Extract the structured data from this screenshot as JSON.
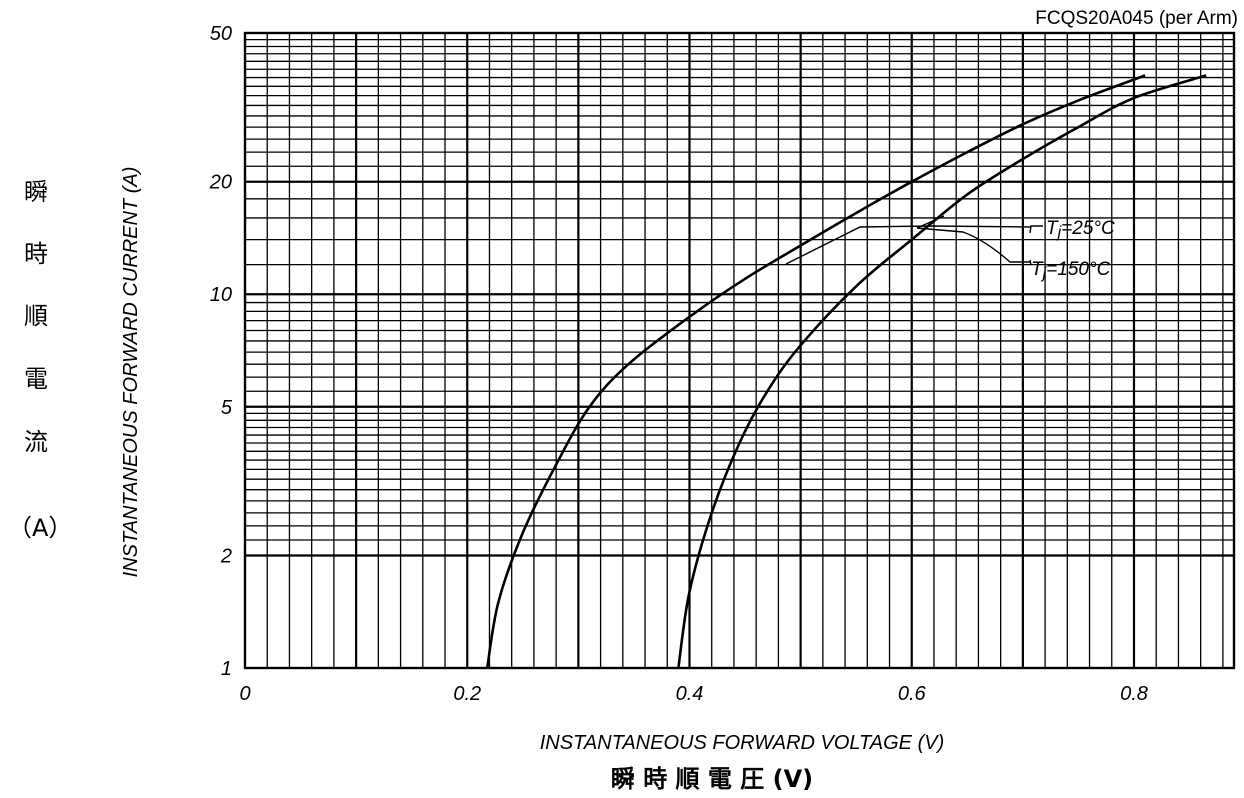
{
  "chart_data": {
    "type": "line",
    "title": "FCQS20A045 (per Arm)",
    "xlabel": "INSTANTANEOUS FORWARD VOLTAGE (V)",
    "xlabel_jp": "瞬 時 順 電 圧 (V)",
    "ylabel": "INSTANTANEOUS FORWARD CURRENT (A)",
    "ylabel_jp": [
      "瞬",
      "時",
      "順",
      "電",
      "流"
    ],
    "ylabel_jp_unit": "（A）",
    "x_scale": "linear",
    "y_scale": "log",
    "xlim": [
      0,
      0.89
    ],
    "ylim": [
      1,
      50
    ],
    "x_ticks": [
      0,
      0.2,
      0.4,
      0.6,
      0.8
    ],
    "x_tick_labels": [
      "0",
      "0.2",
      "0.4",
      "0.6",
      "0.8"
    ],
    "y_ticks": [
      1,
      2,
      5,
      10,
      20,
      50
    ],
    "y_tick_labels": [
      "1",
      "2",
      "5",
      "10",
      "20",
      "50"
    ],
    "grid": true,
    "series": [
      {
        "name": "Tj=25°C",
        "points": [
          [
            0.218,
            1
          ],
          [
            0.228,
            1.5
          ],
          [
            0.25,
            2.3
          ],
          [
            0.28,
            3.5
          ],
          [
            0.31,
            5
          ],
          [
            0.345,
            6.5
          ],
          [
            0.4,
            8.7
          ],
          [
            0.45,
            11
          ],
          [
            0.5,
            13.5
          ],
          [
            0.55,
            16.5
          ],
          [
            0.6,
            20
          ],
          [
            0.65,
            24
          ],
          [
            0.7,
            28.5
          ],
          [
            0.75,
            33
          ],
          [
            0.81,
            38.5
          ]
        ]
      },
      {
        "name": "Tj=150°C",
        "points": [
          [
            0.39,
            1
          ],
          [
            0.4,
            1.6
          ],
          [
            0.42,
            2.6
          ],
          [
            0.445,
            4
          ],
          [
            0.47,
            5.5
          ],
          [
            0.5,
            7.3
          ],
          [
            0.55,
            10.5
          ],
          [
            0.6,
            14
          ],
          [
            0.65,
            18.5
          ],
          [
            0.7,
            23
          ],
          [
            0.75,
            28
          ],
          [
            0.8,
            33.5
          ],
          [
            0.865,
            38.5
          ]
        ]
      }
    ],
    "annotations": [
      {
        "series": "Tj=25°C",
        "text_prefix": "T",
        "text_sub": "j",
        "text_suffix": "=25°C"
      },
      {
        "series": "Tj=150°C",
        "text_prefix": "T",
        "text_sub": "j",
        "text_suffix": "=150°C"
      }
    ]
  }
}
